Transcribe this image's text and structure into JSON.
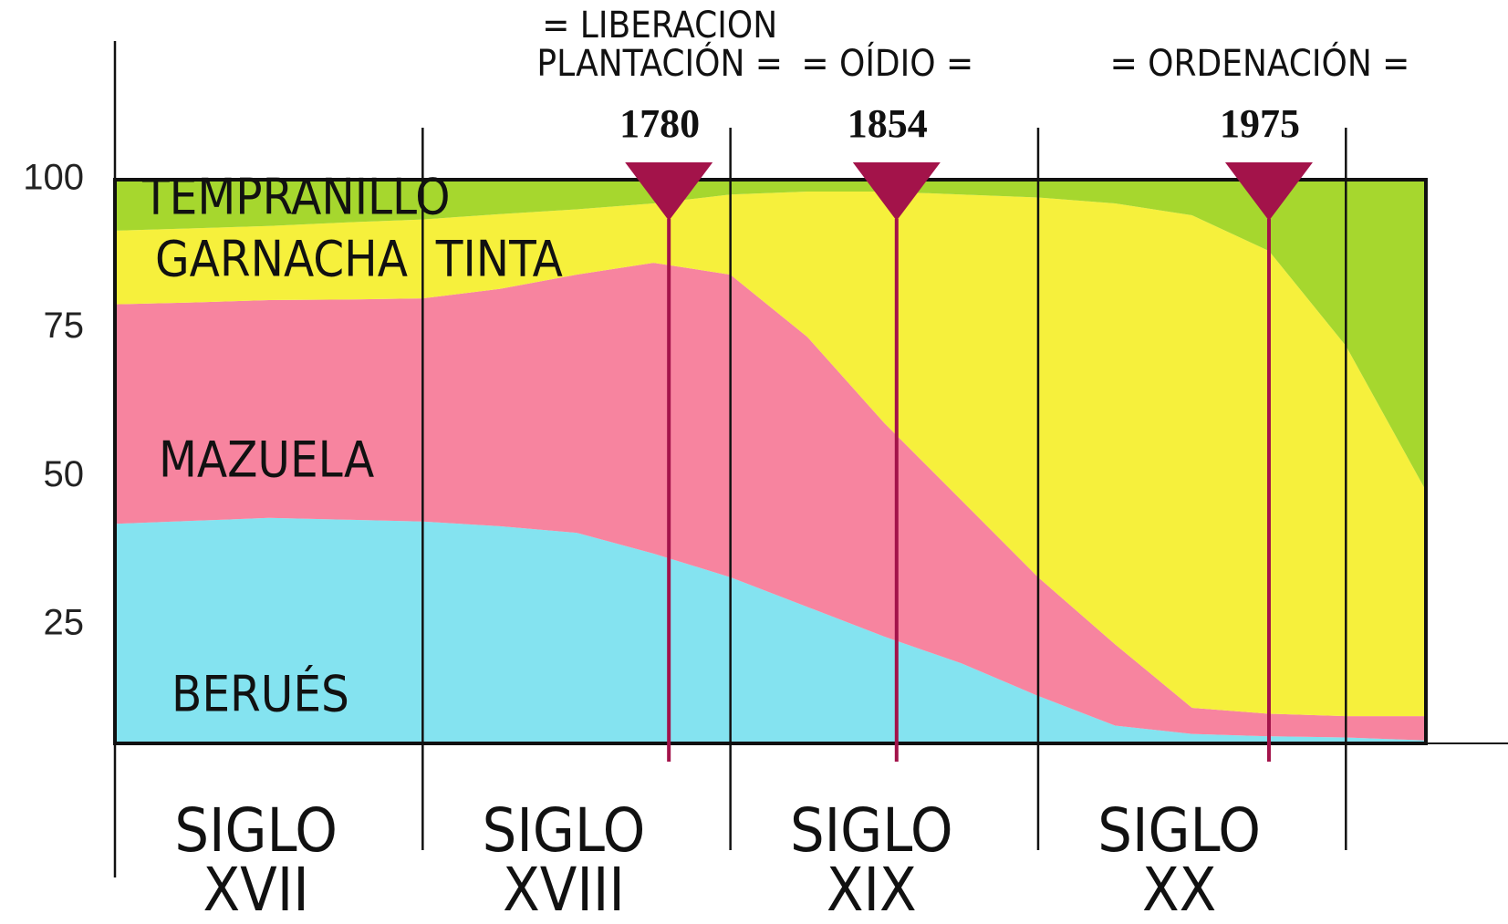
{
  "chart_data": {
    "type": "stacked_area",
    "x": [
      1600,
      1625,
      1650,
      1675,
      1700,
      1725,
      1750,
      1775,
      1800,
      1825,
      1850,
      1875,
      1900,
      1925,
      1950,
      1975,
      2000,
      2026
    ],
    "series": [
      {
        "name": "BERUÉS",
        "color": "#84e3f0",
        "values": [
          42,
          42.5,
          43,
          42.7,
          42.4,
          41.6,
          40.5,
          37,
          33,
          28,
          23,
          18.5,
          13,
          8,
          6.6,
          6.2,
          6,
          5.5
        ]
      },
      {
        "name": "MAZUELA",
        "color": "#f7849f",
        "values": [
          37,
          36.8,
          36.7,
          37.1,
          37.6,
          40,
          43.5,
          49,
          51,
          45.5,
          36,
          27.5,
          20,
          13.7,
          4.4,
          3.8,
          3.6,
          4.1
        ]
      },
      {
        "name": "GARNACHA  TINTA",
        "color": "#f6f03c",
        "values": [
          12.4,
          12.5,
          12.5,
          13,
          13.3,
          12.6,
          11,
          10,
          13.5,
          24.5,
          39,
          51.5,
          64,
          74.3,
          83,
          78,
          62.4,
          38
        ]
      },
      {
        "name": "TEMPRANILLO",
        "color": "#a6d72e",
        "values": [
          8.6,
          8.2,
          7.8,
          7.2,
          6.7,
          5.8,
          5,
          4,
          2.5,
          2,
          2,
          2.5,
          3,
          4,
          6,
          12,
          28,
          52.4
        ]
      }
    ],
    "xlim": [
      1600,
      2026
    ],
    "xticks": [
      1600,
      1700,
      1800,
      1900,
      2000
    ],
    "ylim": [
      5,
      100
    ],
    "yticks": [
      25,
      50,
      75,
      100
    ],
    "centuries": [
      [
        "SIGLO",
        "XVII"
      ],
      [
        "SIGLO",
        "XVIII"
      ],
      [
        "SIGLO",
        "XIX"
      ],
      [
        "SIGLO",
        "XX"
      ]
    ],
    "events": [
      {
        "year": 1780,
        "note": [
          "= LIBERACION",
          "PLANTACIÓN ="
        ]
      },
      {
        "year": 1854,
        "note": [
          "= OÍDIO ="
        ]
      },
      {
        "year": 1975,
        "note": [
          "= ORDENACIÓN ="
        ]
      }
    ],
    "event_color": "#a3134a"
  }
}
